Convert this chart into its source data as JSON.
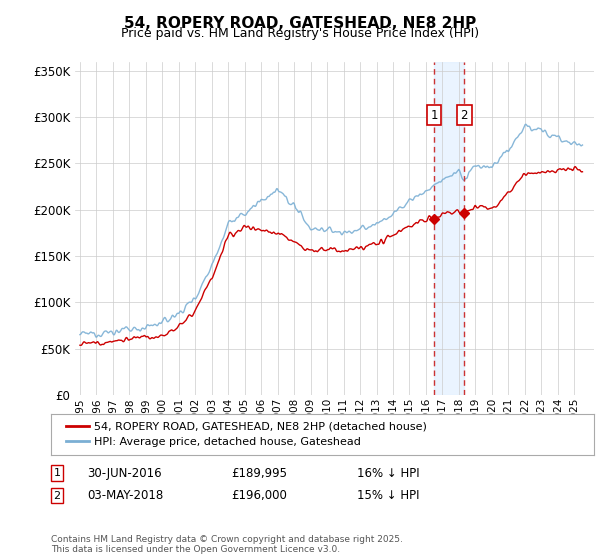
{
  "title": "54, ROPERY ROAD, GATESHEAD, NE8 2HP",
  "subtitle": "Price paid vs. HM Land Registry's House Price Index (HPI)",
  "ylim": [
    0,
    360000
  ],
  "yticks": [
    0,
    50000,
    100000,
    150000,
    200000,
    250000,
    300000,
    350000
  ],
  "ytick_labels": [
    "£0",
    "£50K",
    "£100K",
    "£150K",
    "£200K",
    "£250K",
    "£300K",
    "£350K"
  ],
  "sale1_date_x": 2016.5,
  "sale1_price": 189995,
  "sale1_label": "30-JUN-2016",
  "sale1_price_str": "£189,995",
  "sale1_hpi": "16% ↓ HPI",
  "sale2_date_x": 2018.33,
  "sale2_price": 196000,
  "sale2_label": "03-MAY-2018",
  "sale2_price_str": "£196,000",
  "sale2_hpi": "15% ↓ HPI",
  "legend1": "54, ROPERY ROAD, GATESHEAD, NE8 2HP (detached house)",
  "legend2": "HPI: Average price, detached house, Gateshead",
  "footer": "Contains HM Land Registry data © Crown copyright and database right 2025.\nThis data is licensed under the Open Government Licence v3.0.",
  "line_color_red": "#cc0000",
  "line_color_blue": "#7bafd4",
  "background_color": "#ffffff",
  "shaded_color": "#ddeeff",
  "xmin": 1995,
  "xmax": 2025.5
}
